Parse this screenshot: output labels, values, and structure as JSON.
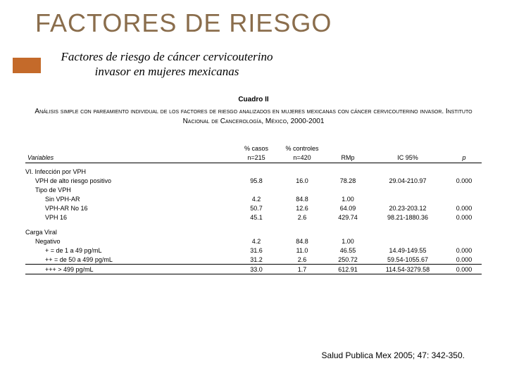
{
  "title": {
    "text": "FACTORES DE RIESGO",
    "color": "#8a6d4c",
    "fontsize": 36
  },
  "accent": {
    "color": "#c46a2a"
  },
  "subtitle": {
    "line1": "Factores de riesgo de cáncer cervicouterino",
    "line2": "invasor en mujeres mexicanas",
    "fontsize": 17,
    "color": "#000000"
  },
  "cuadro": {
    "label": "Cuadro II",
    "fontsize": 10
  },
  "caption": {
    "text": "Análisis simple con pareamiento individual de los factores de riesgo analizados en mujeres mexicanas con cáncer cervicouterino invasor. Instituto Nacional de Cancerología, México, 2000-2001",
    "fontsize": 10
  },
  "table": {
    "header": {
      "variables": "Variables",
      "casos_l1": "% casos",
      "casos_l2": "n=215",
      "ctrl_l1": "% controles",
      "ctrl_l2": "n=420",
      "rmp": "RMp",
      "ic": "IC 95%",
      "p": "p"
    },
    "sections": [
      {
        "title": "VI. Infección por VPH",
        "rows": [
          {
            "label": "VPH de alto riesgo positivo",
            "indent": 1,
            "casos": "95.8",
            "ctrl": "16.0",
            "rmp": "78.28",
            "ic": "29.04-210.97",
            "p": "0.000"
          },
          {
            "label": "Tipo de VPH",
            "indent": 1,
            "casos": "",
            "ctrl": "",
            "rmp": "",
            "ic": "",
            "p": ""
          },
          {
            "label": "Sin VPH-AR",
            "indent": 2,
            "casos": "4.2",
            "ctrl": "84.8",
            "rmp": "1.00",
            "ic": "",
            "p": ""
          },
          {
            "label": "VPH-AR No 16",
            "indent": 2,
            "casos": "50.7",
            "ctrl": "12.6",
            "rmp": "64.09",
            "ic": "20.23-203.12",
            "p": "0.000"
          },
          {
            "label": "VPH 16",
            "indent": 2,
            "casos": "45.1",
            "ctrl": "2.6",
            "rmp": "429.74",
            "ic": "98.21-1880.36",
            "p": "0.000"
          }
        ]
      },
      {
        "title": "Carga Viral",
        "rows": [
          {
            "label": "Negativo",
            "indent": 1,
            "casos": "4.2",
            "ctrl": "84.8",
            "rmp": "1.00",
            "ic": "",
            "p": ""
          },
          {
            "label": "+ = de 1 a 49 pg/mL",
            "indent": 2,
            "casos": "31.6",
            "ctrl": "11.0",
            "rmp": "46.55",
            "ic": "14.49-149.55",
            "p": "0.000"
          },
          {
            "label": "++ = de 50 a 499 pg/mL",
            "indent": 2,
            "casos": "31.2",
            "ctrl": "2.6",
            "rmp": "250.72",
            "ic": "59.54-1055.67",
            "p": "0.000"
          },
          {
            "label": "+++ > 499 pg/mL",
            "indent": 2,
            "casos": "33.0",
            "ctrl": "1.7",
            "rmp": "612.91",
            "ic": "114.54-3279.58",
            "p": "0.000"
          }
        ]
      }
    ]
  },
  "citation": {
    "text": "Salud Publica Mex 2005; 47: 342-350.",
    "fontsize": 12
  }
}
